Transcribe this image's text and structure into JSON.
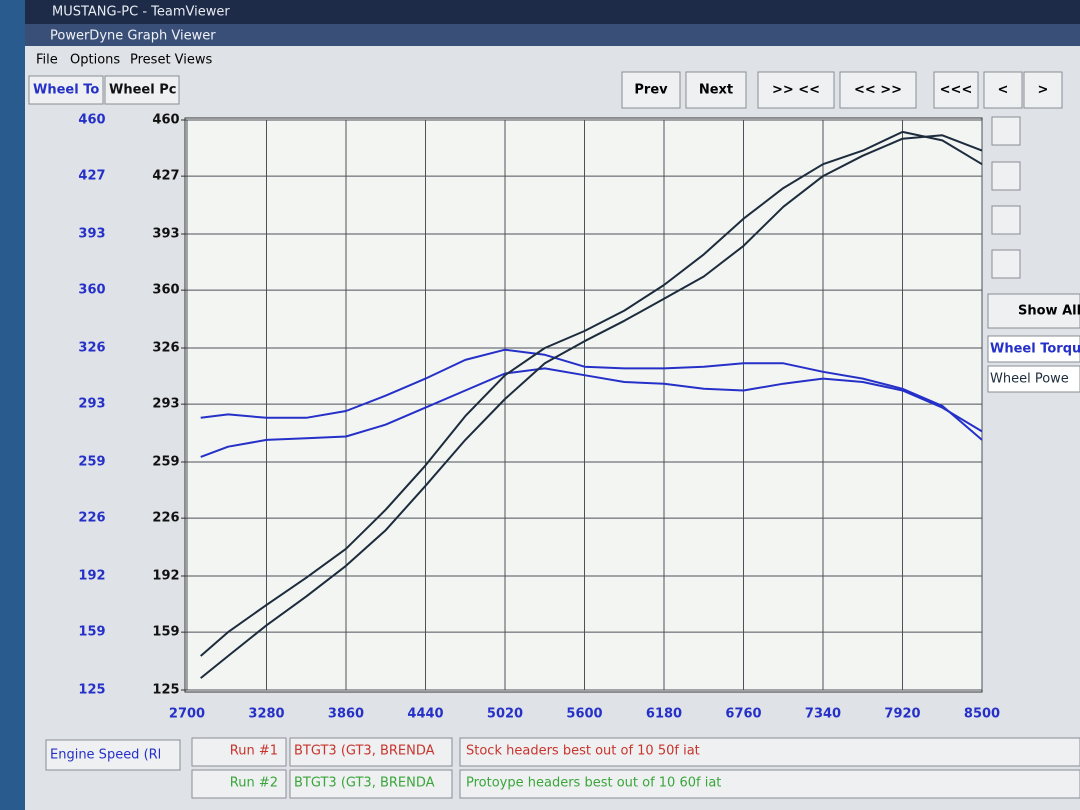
{
  "ui": {
    "window_title": "MUSTANG-PC - TeamViewer",
    "app_title": "PowerDyne Graph Viewer",
    "menu": [
      "File",
      "Options",
      "Preset Views"
    ],
    "tabs": [
      "Wheel To",
      "Wheel Pc"
    ],
    "buttons": [
      "Prev",
      "Next",
      ">> <<",
      "<< >>",
      "<<<",
      "<",
      ">"
    ],
    "show_all": "Show All",
    "side_items": [
      "Wheel Torqu",
      "Wheel Powe"
    ],
    "runs": [
      {
        "label": "Run #1",
        "car": "BTGT3 (GT3, BRENDA",
        "note": "Stock headers best out of 10 50f iat"
      },
      {
        "label": "Run #2",
        "car": "BTGT3 (GT3, BRENDA",
        "note": "Protoype headers best out of 10 60f iat"
      }
    ]
  },
  "chart_data": {
    "type": "line",
    "x_label": "Engine Speed (Rl",
    "x": [
      2800,
      3000,
      3280,
      3570,
      3860,
      4150,
      4440,
      4730,
      5020,
      5310,
      5600,
      5890,
      6180,
      6470,
      6760,
      7050,
      7340,
      7630,
      7920,
      8210,
      8500
    ],
    "xlim": [
      2700,
      8500
    ],
    "xticks": [
      2700,
      3280,
      3860,
      4440,
      5020,
      5600,
      6180,
      6760,
      7340,
      7920,
      8500
    ],
    "ylim": [
      125,
      460
    ],
    "yticks": [
      125,
      159,
      192,
      226,
      259,
      293,
      326,
      360,
      393,
      427,
      460
    ],
    "y2lim": [
      125,
      460
    ],
    "y2ticks": [
      125,
      159,
      192,
      226,
      259,
      293,
      326,
      360,
      393,
      427,
      460
    ],
    "grid": true,
    "series": [
      {
        "color": "#2530c8",
        "values": [
          285,
          287,
          285,
          285,
          289,
          298,
          308,
          319,
          325,
          322,
          315,
          314,
          314,
          315,
          317,
          317,
          312,
          308,
          302,
          292,
          272
        ]
      },
      {
        "color": "#2530c8",
        "values": [
          262,
          268,
          272,
          273,
          274,
          281,
          291,
          301,
          311,
          314,
          310,
          306,
          305,
          302,
          301,
          305,
          308,
          306,
          301,
          291,
          277
        ]
      },
      {
        "color": "#1c2c3c",
        "axis": "y2",
        "values": [
          145,
          159,
          175,
          191,
          208,
          231,
          257,
          286,
          310,
          326,
          336,
          348,
          363,
          381,
          402,
          420,
          434,
          442,
          453,
          448,
          434
        ]
      },
      {
        "color": "#1c2c3c",
        "axis": "y2",
        "values": [
          132,
          145,
          163,
          180,
          198,
          219,
          245,
          272,
          296,
          317,
          330,
          342,
          355,
          368,
          386,
          409,
          427,
          439,
          449,
          451,
          442
        ]
      }
    ]
  }
}
